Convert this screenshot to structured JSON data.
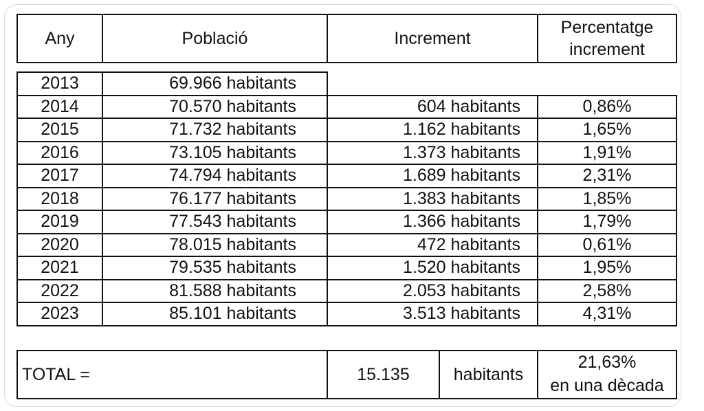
{
  "header": {
    "year": "Any",
    "population": "Població",
    "increment": "Increment",
    "percentage_line1": "Percentatge",
    "percentage_line2": "increment"
  },
  "rows": [
    {
      "year": "2013",
      "population": "69.966 habitants",
      "increment": "",
      "percentage": ""
    },
    {
      "year": "2014",
      "population": "70.570 habitants",
      "increment": "604 habitants",
      "percentage": "0,86%"
    },
    {
      "year": "2015",
      "population": "71.732 habitants",
      "increment": "1.162 habitants",
      "percentage": "1,65%"
    },
    {
      "year": "2016",
      "population": "73.105 habitants",
      "increment": "1.373 habitants",
      "percentage": "1,91%"
    },
    {
      "year": "2017",
      "population": "74.794 habitants",
      "increment": "1.689 habitants",
      "percentage": "2,31%"
    },
    {
      "year": "2018",
      "population": "76.177 habitants",
      "increment": "1.383 habitants",
      "percentage": "1,85%"
    },
    {
      "year": "2019",
      "population": "77.543 habitants",
      "increment": "1.366 habitants",
      "percentage": "1,79%"
    },
    {
      "year": "2020",
      "population": "78.015 habitants",
      "increment": "472 habitants",
      "percentage": "0,61%"
    },
    {
      "year": "2021",
      "population": "79.535 habitants",
      "increment": "1.520 habitants",
      "percentage": "1,95%"
    },
    {
      "year": "2022",
      "population": "81.588 habitants",
      "increment": "2.053 habitants",
      "percentage": "2,58%"
    },
    {
      "year": "2023",
      "population": "85.101 habitants",
      "increment": "3.513 habitants",
      "percentage": "4,31%"
    }
  ],
  "total": {
    "label": "TOTAL =",
    "value": "15.135",
    "unit": "habitants",
    "percentage": "21,63%",
    "percentage_note": "en una dècada"
  }
}
